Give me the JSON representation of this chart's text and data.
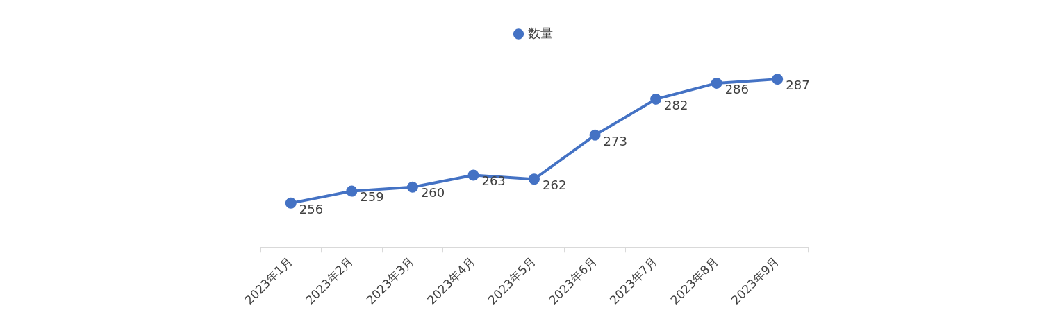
{
  "chart_data": {
    "type": "line",
    "categories": [
      "2023年1月",
      "2023年2月",
      "2023年3月",
      "2023年4月",
      "2023年5月",
      "2023年6月",
      "2023年7月",
      "2023年8月",
      "2023年9月"
    ],
    "series": [
      {
        "name": "数量",
        "color": "#4472c4",
        "values": [
          256,
          259,
          260,
          263,
          262,
          273,
          282,
          286,
          287
        ]
      }
    ],
    "tick_labels": "x",
    "grid": false,
    "legend": "top",
    "marker": "circle",
    "line_style": "solid",
    "data_labels": true
  }
}
